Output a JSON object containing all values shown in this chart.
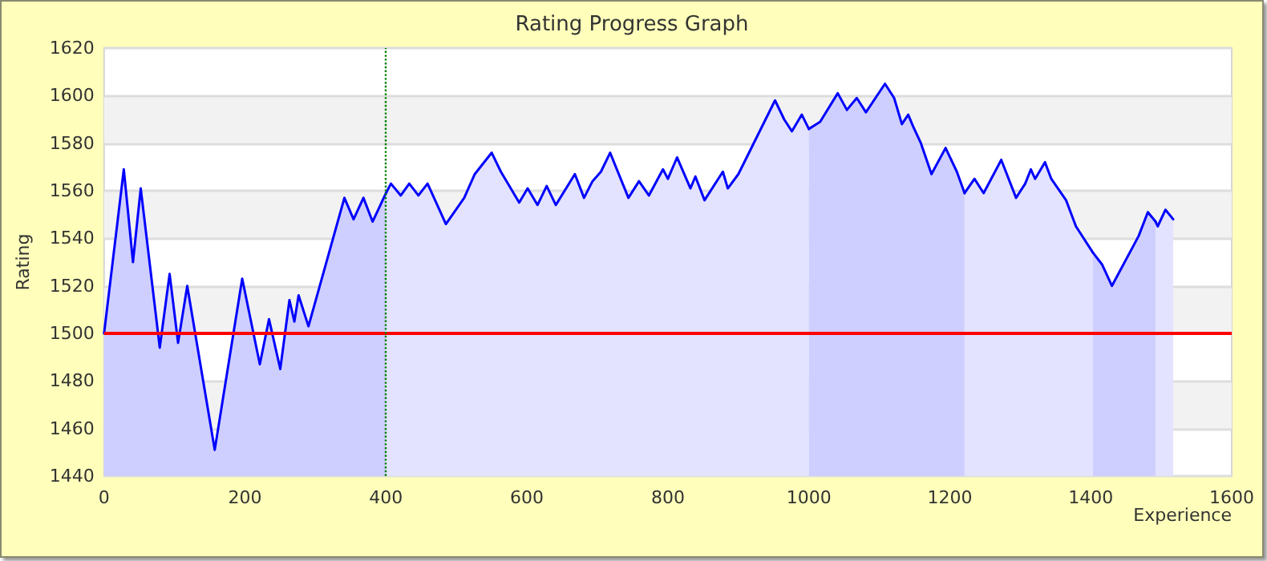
{
  "chart_data": {
    "type": "area",
    "title": "Rating Progress Graph",
    "xlabel": "Experience",
    "ylabel": "Rating",
    "xlim": [
      0,
      1600
    ],
    "xticks": [
      0,
      200,
      400,
      600,
      800,
      1000,
      1200,
      1400,
      1600
    ],
    "ylim": [
      1440,
      1620
    ],
    "yticks": [
      1440,
      1460,
      1480,
      1500,
      1520,
      1540,
      1560,
      1580,
      1600,
      1620
    ],
    "grid": "y",
    "marker": "none",
    "line_style": "solid",
    "series": [
      {
        "color": "#0000ff",
        "x": [
          0,
          28,
          41,
          52,
          79,
          93,
          105,
          118,
          157,
          196,
          221,
          234,
          250,
          263,
          270,
          276,
          290,
          341,
          354,
          368,
          381,
          400
        ],
        "values": [
          1500,
          1569,
          1530,
          1561,
          1494,
          1525,
          1496,
          1520,
          1451,
          1523,
          1487,
          1506,
          1485,
          1514,
          1505,
          1516,
          1503,
          1557,
          1548,
          1557,
          1547,
          1559
        ]
      },
      {
        "color": "#0000ff",
        "x": [
          400,
          407,
          421,
          433,
          446,
          459,
          485,
          511,
          526,
          550,
          563,
          589,
          601,
          615,
          628,
          641,
          668,
          681,
          693,
          705,
          718,
          744,
          759,
          773,
          793,
          800,
          813,
          832,
          839,
          852,
          878,
          885,
          900,
          952,
          965,
          976,
          990,
          1000
        ],
        "values": [
          1559,
          1563,
          1558,
          1563,
          1558,
          1563,
          1546,
          1557,
          1567,
          1576,
          1568,
          1555,
          1561,
          1554,
          1562,
          1554,
          1567,
          1557,
          1564,
          1568,
          1576,
          1557,
          1564,
          1558,
          1569,
          1565,
          1574,
          1561,
          1566,
          1556,
          1568,
          1561,
          1567,
          1598,
          1590,
          1585,
          1592,
          1586
        ]
      },
      {
        "color": "#0000ff",
        "x": [
          1000,
          1016,
          1041,
          1054,
          1068,
          1081,
          1108,
          1121,
          1132,
          1141,
          1148,
          1159,
          1174,
          1194,
          1210,
          1221
        ],
        "values": [
          1586,
          1589,
          1601,
          1594,
          1599,
          1593,
          1605,
          1599,
          1588,
          1592,
          1587,
          1580,
          1567,
          1578,
          1568,
          1559
        ]
      },
      {
        "color": "#0000ff",
        "x": [
          1221,
          1235,
          1248,
          1273,
          1294,
          1307,
          1315,
          1321,
          1335,
          1344,
          1365,
          1379,
          1403
        ],
        "values": [
          1559,
          1565,
          1559,
          1573,
          1557,
          1563,
          1569,
          1565,
          1572,
          1565,
          1556,
          1545,
          1534
        ]
      },
      {
        "color": "#0000ff",
        "x": [
          1403,
          1416,
          1430,
          1468,
          1481,
          1492
        ],
        "values": [
          1534,
          1529,
          1520,
          1541,
          1551,
          1547
        ]
      },
      {
        "color": "#0000ff",
        "x": [
          1492,
          1495,
          1506,
          1517
        ],
        "values": [
          1547,
          1545,
          1552,
          1548
        ]
      }
    ],
    "ref_lines": [
      {
        "axis": "y",
        "value": 1500,
        "color": "#ff0000",
        "line_style": "solid"
      },
      {
        "axis": "x",
        "value": 400,
        "color": "#008000",
        "line_style": "dotted"
      }
    ]
  }
}
